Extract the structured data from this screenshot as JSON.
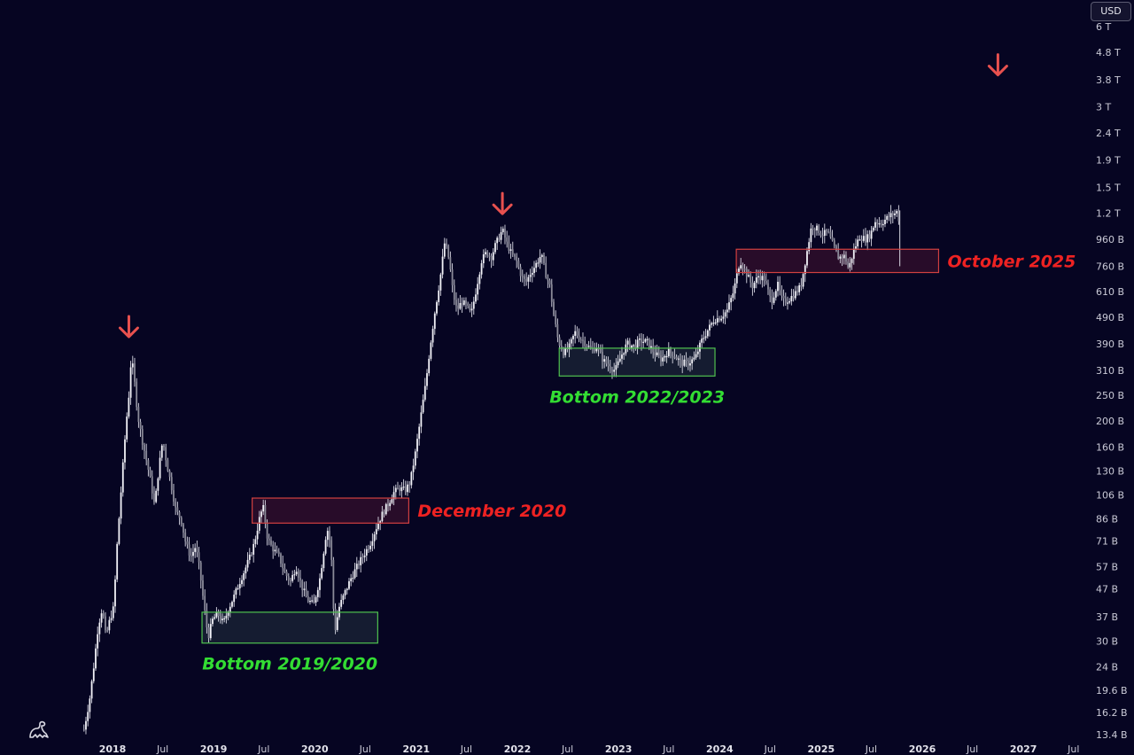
{
  "currency_badge": "USD",
  "chart_data": {
    "type": "candlestick",
    "scale": "log",
    "grid": false,
    "currency": "USD",
    "y_ticks": [
      "6 T",
      "4.8 T",
      "3.8 T",
      "3 T",
      "2.4 T",
      "1.9 T",
      "1.5 T",
      "1.2 T",
      "960 B",
      "760 B",
      "610 B",
      "490 B",
      "390 B",
      "310 B",
      "250 B",
      "200 B",
      "160 B",
      "130 B",
      "106 B",
      "86 B",
      "71 B",
      "57 B",
      "47 B",
      "37 B",
      "30 B",
      "24 B",
      "19.6 B",
      "16.2 B",
      "13.4 B"
    ],
    "y_tick_values": [
      6000,
      4800,
      3800,
      3000,
      2400,
      1900,
      1500,
      1200,
      960,
      760,
      610,
      490,
      390,
      310,
      250,
      200,
      160,
      130,
      106,
      86,
      71,
      57,
      47,
      37,
      30,
      24,
      19.6,
      16.2,
      13.4
    ],
    "x_ticks": [
      {
        "label": "2018",
        "date": "2018-01-01",
        "major": true
      },
      {
        "label": "Jul",
        "date": "2018-07-01",
        "major": false
      },
      {
        "label": "2019",
        "date": "2019-01-01",
        "major": true
      },
      {
        "label": "Jul",
        "date": "2019-07-01",
        "major": false
      },
      {
        "label": "2020",
        "date": "2020-01-01",
        "major": true
      },
      {
        "label": "Jul",
        "date": "2020-07-01",
        "major": false
      },
      {
        "label": "2021",
        "date": "2021-01-01",
        "major": true
      },
      {
        "label": "Jul",
        "date": "2021-07-01",
        "major": false
      },
      {
        "label": "2022",
        "date": "2022-01-01",
        "major": true
      },
      {
        "label": "Jul",
        "date": "2022-07-01",
        "major": false
      },
      {
        "label": "2023",
        "date": "2023-01-01",
        "major": true
      },
      {
        "label": "Jul",
        "date": "2023-07-01",
        "major": false
      },
      {
        "label": "2024",
        "date": "2024-01-01",
        "major": true
      },
      {
        "label": "Jul",
        "date": "2024-07-01",
        "major": false
      },
      {
        "label": "2025",
        "date": "2025-01-01",
        "major": true
      },
      {
        "label": "Jul",
        "date": "2025-07-01",
        "major": false
      },
      {
        "label": "2026",
        "date": "2026-01-01",
        "major": true
      },
      {
        "label": "Jul",
        "date": "2026-07-01",
        "major": false
      },
      {
        "label": "2027",
        "date": "2027-01-01",
        "major": true
      },
      {
        "label": "Jul",
        "date": "2027-07-01",
        "major": false
      }
    ],
    "price_path": [
      {
        "date": "2017-09-20",
        "value": 14
      },
      {
        "date": "2017-10-10",
        "value": 18
      },
      {
        "date": "2017-10-25",
        "value": 24
      },
      {
        "date": "2017-11-10",
        "value": 34
      },
      {
        "date": "2017-11-25",
        "value": 40
      },
      {
        "date": "2017-12-08",
        "value": 31
      },
      {
        "date": "2017-12-22",
        "value": 36
      },
      {
        "date": "2018-01-05",
        "value": 40
      },
      {
        "date": "2018-01-18",
        "value": 70
      },
      {
        "date": "2018-02-01",
        "value": 110
      },
      {
        "date": "2018-02-18",
        "value": 190
      },
      {
        "date": "2018-03-01",
        "value": 250
      },
      {
        "date": "2018-03-10",
        "value": 350
      },
      {
        "date": "2018-03-20",
        "value": 290
      },
      {
        "date": "2018-04-02",
        "value": 210
      },
      {
        "date": "2018-04-18",
        "value": 170
      },
      {
        "date": "2018-05-02",
        "value": 145
      },
      {
        "date": "2018-05-18",
        "value": 120
      },
      {
        "date": "2018-06-02",
        "value": 96
      },
      {
        "date": "2018-06-16",
        "value": 130
      },
      {
        "date": "2018-07-01",
        "value": 170
      },
      {
        "date": "2018-07-15",
        "value": 140
      },
      {
        "date": "2018-08-01",
        "value": 115
      },
      {
        "date": "2018-08-18",
        "value": 92
      },
      {
        "date": "2018-09-05",
        "value": 86
      },
      {
        "date": "2018-09-22",
        "value": 70
      },
      {
        "date": "2018-10-10",
        "value": 62
      },
      {
        "date": "2018-10-28",
        "value": 68
      },
      {
        "date": "2018-11-12",
        "value": 55
      },
      {
        "date": "2018-11-28",
        "value": 40
      },
      {
        "date": "2018-12-12",
        "value": 31
      },
      {
        "date": "2018-12-28",
        "value": 36
      },
      {
        "date": "2019-01-15",
        "value": 38
      },
      {
        "date": "2019-02-05",
        "value": 35
      },
      {
        "date": "2019-02-25",
        "value": 40
      },
      {
        "date": "2019-03-15",
        "value": 44
      },
      {
        "date": "2019-04-05",
        "value": 50
      },
      {
        "date": "2019-04-25",
        "value": 56
      },
      {
        "date": "2019-05-12",
        "value": 62
      },
      {
        "date": "2019-05-28",
        "value": 70
      },
      {
        "date": "2019-06-15",
        "value": 86
      },
      {
        "date": "2019-06-28",
        "value": 96
      },
      {
        "date": "2019-07-15",
        "value": 72
      },
      {
        "date": "2019-08-05",
        "value": 66
      },
      {
        "date": "2019-08-25",
        "value": 62
      },
      {
        "date": "2019-09-15",
        "value": 54
      },
      {
        "date": "2019-10-05",
        "value": 50
      },
      {
        "date": "2019-10-25",
        "value": 57
      },
      {
        "date": "2019-11-15",
        "value": 48
      },
      {
        "date": "2019-12-05",
        "value": 43
      },
      {
        "date": "2019-12-28",
        "value": 41
      },
      {
        "date": "2020-01-20",
        "value": 52
      },
      {
        "date": "2020-02-14",
        "value": 80
      },
      {
        "date": "2020-02-28",
        "value": 68
      },
      {
        "date": "2020-03-12",
        "value": 32
      },
      {
        "date": "2020-03-28",
        "value": 40
      },
      {
        "date": "2020-04-20",
        "value": 46
      },
      {
        "date": "2020-05-12",
        "value": 52
      },
      {
        "date": "2020-06-05",
        "value": 58
      },
      {
        "date": "2020-06-25",
        "value": 63
      },
      {
        "date": "2020-07-20",
        "value": 70
      },
      {
        "date": "2020-08-10",
        "value": 80
      },
      {
        "date": "2020-09-01",
        "value": 90
      },
      {
        "date": "2020-09-22",
        "value": 98
      },
      {
        "date": "2020-10-12",
        "value": 108
      },
      {
        "date": "2020-11-01",
        "value": 112
      },
      {
        "date": "2020-11-22",
        "value": 110
      },
      {
        "date": "2020-12-10",
        "value": 118
      },
      {
        "date": "2020-12-28",
        "value": 150
      },
      {
        "date": "2021-01-15",
        "value": 200
      },
      {
        "date": "2021-02-05",
        "value": 280
      },
      {
        "date": "2021-02-20",
        "value": 380
      },
      {
        "date": "2021-03-10",
        "value": 520
      },
      {
        "date": "2021-03-28",
        "value": 680
      },
      {
        "date": "2021-04-14",
        "value": 940
      },
      {
        "date": "2021-04-30",
        "value": 800
      },
      {
        "date": "2021-05-14",
        "value": 600
      },
      {
        "date": "2021-05-28",
        "value": 520
      },
      {
        "date": "2021-06-14",
        "value": 560
      },
      {
        "date": "2021-07-01",
        "value": 540
      },
      {
        "date": "2021-07-18",
        "value": 500
      },
      {
        "date": "2021-08-05",
        "value": 620
      },
      {
        "date": "2021-08-25",
        "value": 800
      },
      {
        "date": "2021-09-12",
        "value": 860
      },
      {
        "date": "2021-09-28",
        "value": 820
      },
      {
        "date": "2021-10-15",
        "value": 920
      },
      {
        "date": "2021-11-08",
        "value": 1040
      },
      {
        "date": "2021-11-25",
        "value": 920
      },
      {
        "date": "2021-12-12",
        "value": 840
      },
      {
        "date": "2021-12-28",
        "value": 800
      },
      {
        "date": "2022-01-15",
        "value": 700
      },
      {
        "date": "2022-02-01",
        "value": 660
      },
      {
        "date": "2022-02-18",
        "value": 720
      },
      {
        "date": "2022-03-05",
        "value": 760
      },
      {
        "date": "2022-03-28",
        "value": 840
      },
      {
        "date": "2022-04-12",
        "value": 720
      },
      {
        "date": "2022-04-28",
        "value": 640
      },
      {
        "date": "2022-05-12",
        "value": 500
      },
      {
        "date": "2022-05-28",
        "value": 400
      },
      {
        "date": "2022-06-18",
        "value": 360
      },
      {
        "date": "2022-07-08",
        "value": 380
      },
      {
        "date": "2022-07-28",
        "value": 430
      },
      {
        "date": "2022-08-15",
        "value": 410
      },
      {
        "date": "2022-09-05",
        "value": 390
      },
      {
        "date": "2022-09-25",
        "value": 370
      },
      {
        "date": "2022-10-15",
        "value": 380
      },
      {
        "date": "2022-11-05",
        "value": 340
      },
      {
        "date": "2022-11-28",
        "value": 320
      },
      {
        "date": "2022-12-20",
        "value": 310
      },
      {
        "date": "2023-01-10",
        "value": 350
      },
      {
        "date": "2023-02-01",
        "value": 390
      },
      {
        "date": "2023-02-25",
        "value": 380
      },
      {
        "date": "2023-03-20",
        "value": 400
      },
      {
        "date": "2023-04-15",
        "value": 395
      },
      {
        "date": "2023-05-10",
        "value": 360
      },
      {
        "date": "2023-06-05",
        "value": 340
      },
      {
        "date": "2023-06-28",
        "value": 365
      },
      {
        "date": "2023-07-20",
        "value": 355
      },
      {
        "date": "2023-08-15",
        "value": 330
      },
      {
        "date": "2023-09-10",
        "value": 330
      },
      {
        "date": "2023-10-05",
        "value": 345
      },
      {
        "date": "2023-10-28",
        "value": 400
      },
      {
        "date": "2023-11-20",
        "value": 440
      },
      {
        "date": "2023-12-12",
        "value": 480
      },
      {
        "date": "2024-01-05",
        "value": 490
      },
      {
        "date": "2024-01-28",
        "value": 520
      },
      {
        "date": "2024-02-20",
        "value": 610
      },
      {
        "date": "2024-03-14",
        "value": 800
      },
      {
        "date": "2024-04-05",
        "value": 720
      },
      {
        "date": "2024-04-28",
        "value": 640
      },
      {
        "date": "2024-05-20",
        "value": 700
      },
      {
        "date": "2024-06-10",
        "value": 680
      },
      {
        "date": "2024-07-05",
        "value": 560
      },
      {
        "date": "2024-07-28",
        "value": 650
      },
      {
        "date": "2024-08-15",
        "value": 560
      },
      {
        "date": "2024-09-05",
        "value": 570
      },
      {
        "date": "2024-09-28",
        "value": 600
      },
      {
        "date": "2024-10-20",
        "value": 640
      },
      {
        "date": "2024-11-10",
        "value": 850
      },
      {
        "date": "2024-11-28",
        "value": 1080
      },
      {
        "date": "2024-12-16",
        "value": 1050
      },
      {
        "date": "2025-01-05",
        "value": 1000
      },
      {
        "date": "2025-01-25",
        "value": 1020
      },
      {
        "date": "2025-02-15",
        "value": 900
      },
      {
        "date": "2025-03-05",
        "value": 820
      },
      {
        "date": "2025-03-28",
        "value": 830
      },
      {
        "date": "2025-04-10",
        "value": 740
      },
      {
        "date": "2025-04-30",
        "value": 880
      },
      {
        "date": "2025-05-20",
        "value": 980
      },
      {
        "date": "2025-06-10",
        "value": 960
      },
      {
        "date": "2025-06-28",
        "value": 1000
      },
      {
        "date": "2025-07-15",
        "value": 1120
      },
      {
        "date": "2025-08-05",
        "value": 1100
      },
      {
        "date": "2025-08-22",
        "value": 1140
      },
      {
        "date": "2025-09-10",
        "value": 1180
      },
      {
        "date": "2025-09-25",
        "value": 1200
      },
      {
        "date": "2025-10-06",
        "value": 1230
      },
      {
        "date": "2025-10-12",
        "value": 980
      }
    ],
    "zones": [
      {
        "kind": "bottom",
        "label": "Bottom 2019/2020",
        "x_from": "2018-11-20",
        "x_to": "2020-08-15",
        "y_low": 29.5,
        "y_high": 38.5
      },
      {
        "kind": "resistance",
        "label": "December 2020",
        "x_from": "2019-05-20",
        "x_to": "2020-12-05",
        "y_low": 83,
        "y_high": 103
      },
      {
        "kind": "bottom",
        "label": "Bottom 2022/2023",
        "x_from": "2022-06-01",
        "x_to": "2023-12-15",
        "y_low": 295,
        "y_high": 375
      },
      {
        "kind": "resistance",
        "label": "October 2025",
        "x_from": "2024-03-01",
        "x_to": "2026-03-01",
        "y_low": 720,
        "y_high": 880
      }
    ],
    "peak_arrows": [
      {
        "date": "2018-03-01",
        "value": 450
      },
      {
        "date": "2021-11-08",
        "value": 1300
      },
      {
        "date": "2026-10-01",
        "value": 4300
      }
    ]
  }
}
